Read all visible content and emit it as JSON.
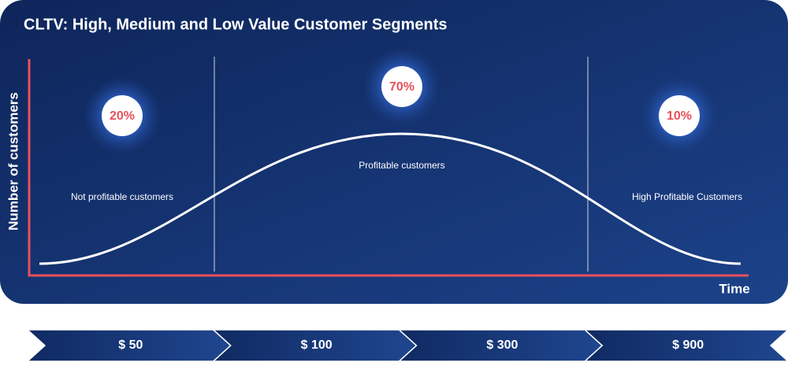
{
  "title": "CLTV: High, Medium and Low Value Customer Segments",
  "y_axis_label": "Number of customers",
  "x_axis_label": "Time",
  "segments": [
    {
      "percent": "20%",
      "label": "Not profitable customers"
    },
    {
      "percent": "70%",
      "label": "Profitable customers"
    },
    {
      "percent": "10%",
      "label": "High Profitable Customers"
    }
  ],
  "value_steps": [
    "$ 50",
    "$ 100",
    "$ 300",
    "$ 900"
  ]
}
